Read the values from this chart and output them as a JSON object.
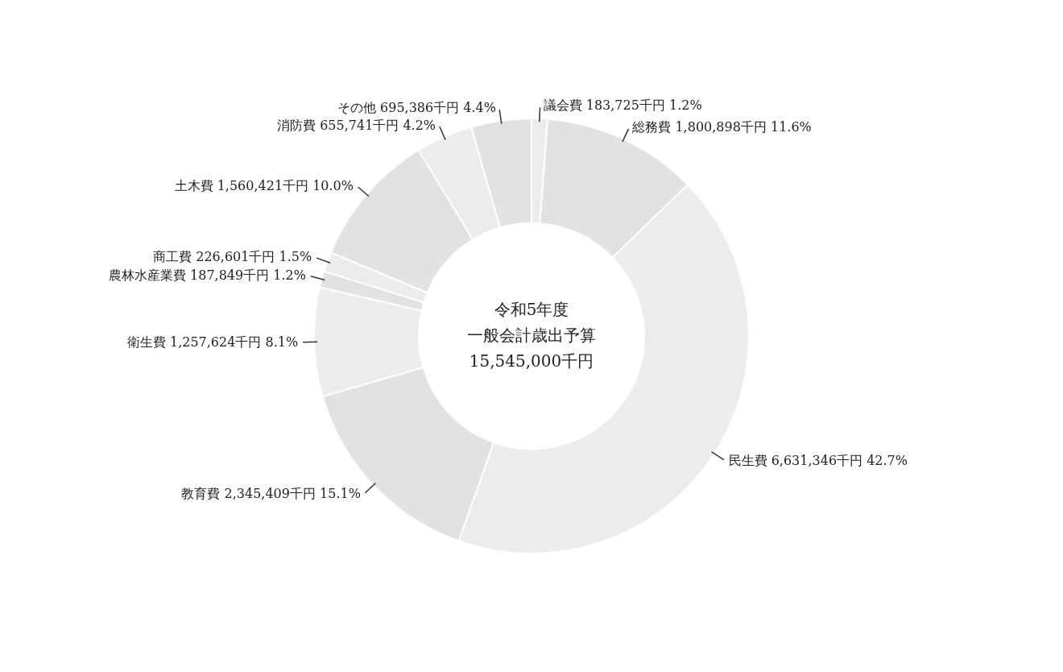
{
  "chart_data": {
    "type": "donut",
    "title": "令和5年度",
    "subtitle": "一般会計歳出予算",
    "annotations": [
      "15,545,000千円"
    ],
    "categories": [
      "議会費",
      "総務費",
      "民生費",
      "教育費",
      "衛生費",
      "農林水産業費",
      "商工費",
      "土木費",
      "消防費",
      "その他"
    ],
    "values": [
      183725,
      1800898,
      6631346,
      2345409,
      1257624,
      187849,
      226601,
      1560421,
      655741,
      695386
    ],
    "value_labels": [
      "183,725千円 1.2%",
      "1,800,898千円 11.6%",
      "6,631,346千円 42.7%",
      "2,345,409千円 15.1%",
      "1,257,624千円 8.1%",
      "187,849千円 1.2%",
      "226,601千円 1.5%",
      "1,560,421千円 10.0%",
      "655,741千円 4.2%",
      "695,386千円 4.4%"
    ],
    "colors": [
      "#ececec",
      "#e2e2e2",
      "#ececec",
      "#e2e2e2",
      "#ececec",
      "#e2e2e2",
      "#ececec",
      "#e2e2e2",
      "#ececec",
      "#e2e2e2"
    ]
  }
}
